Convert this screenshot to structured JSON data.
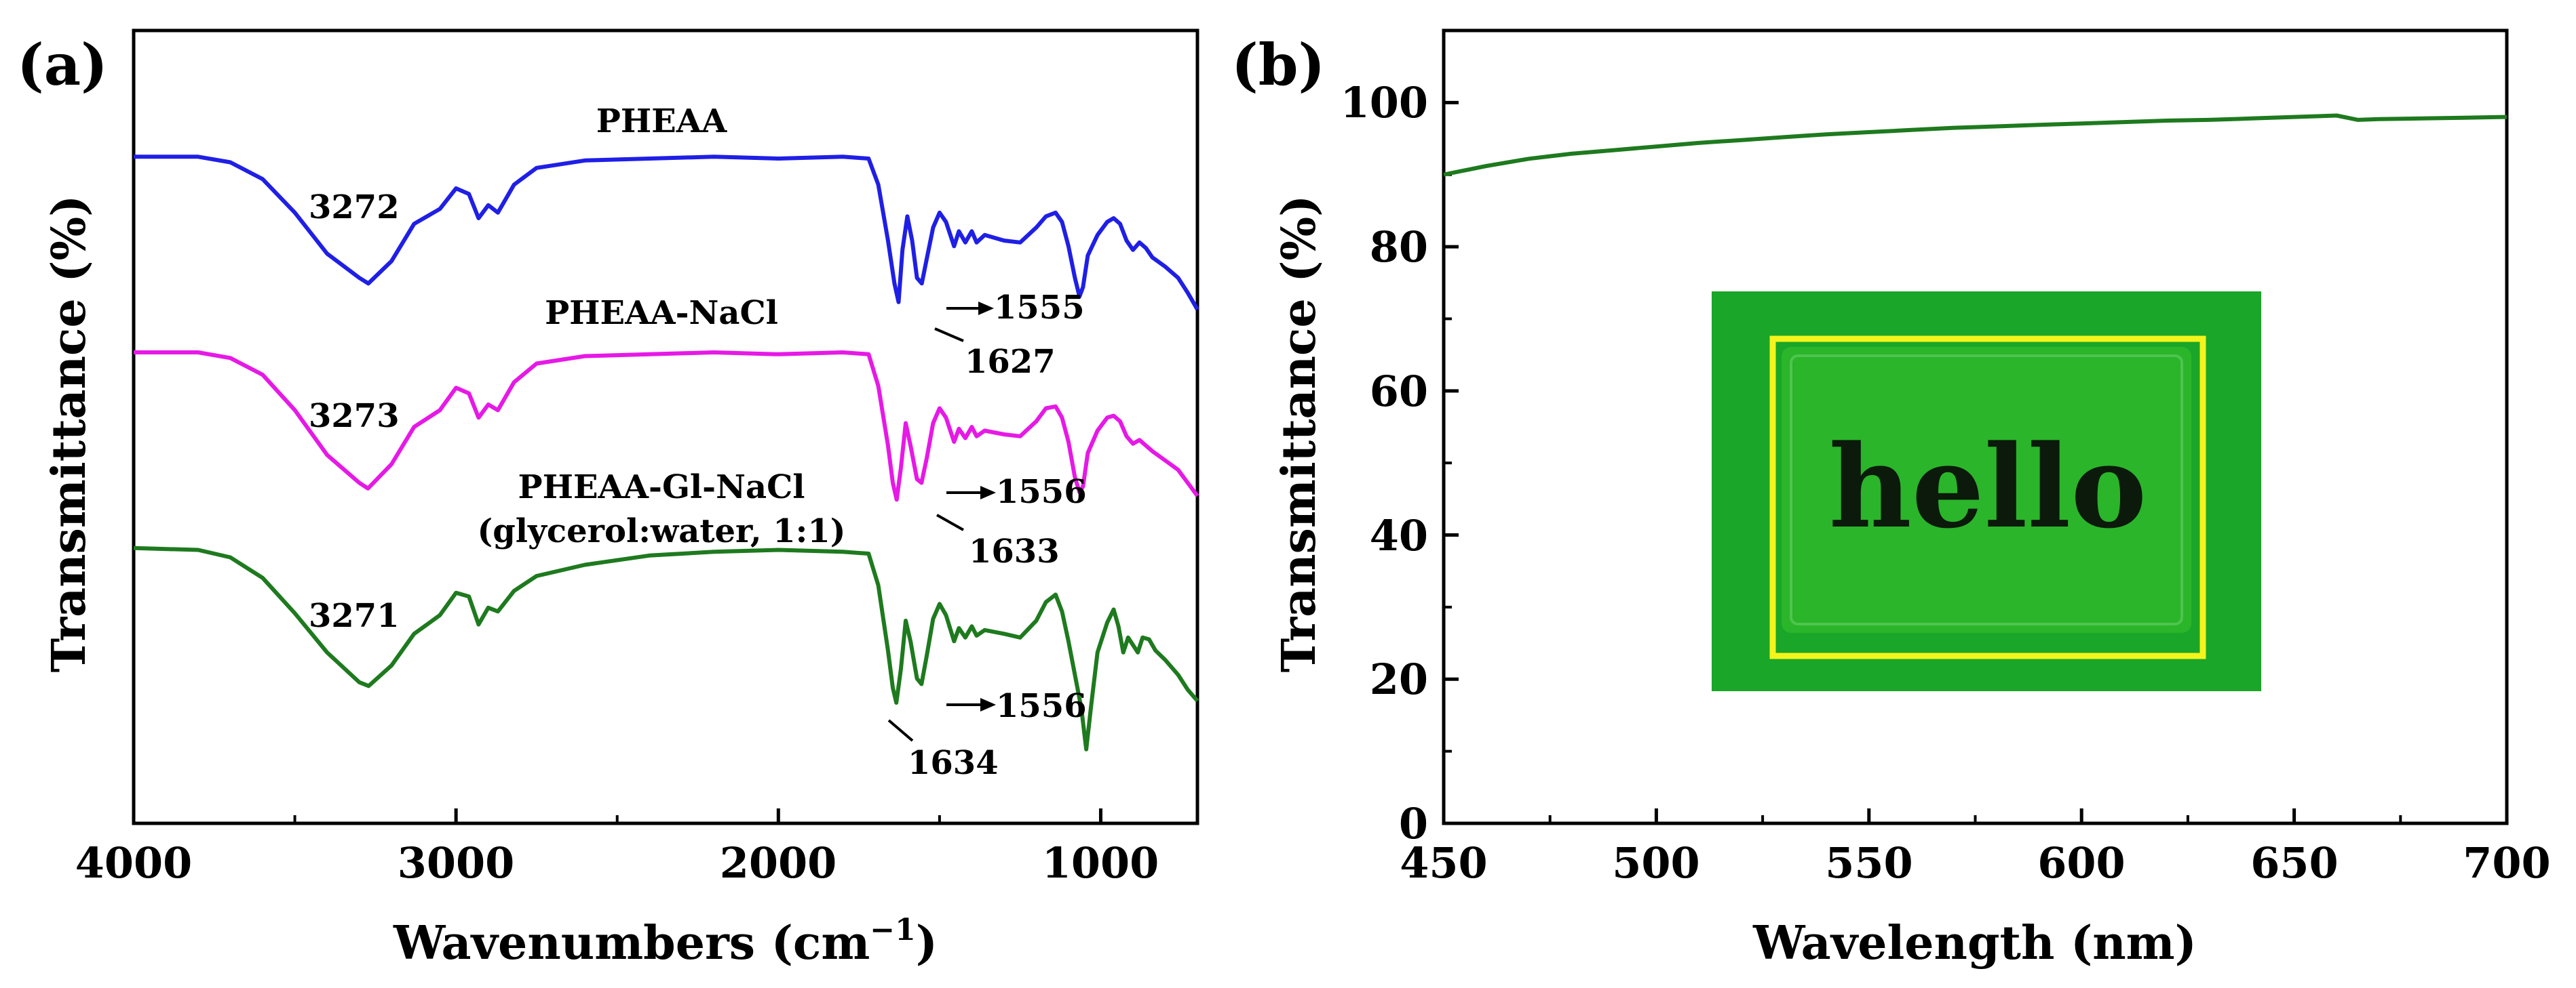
{
  "chart_data": [
    {
      "panel": "(a)",
      "type": "line",
      "xlabel": "Wavenumbers (cm",
      "xlabel_sup": "−1",
      "xlabel_end": ")",
      "ylabel": "Transmittance (%)",
      "xlim": [
        4000,
        700
      ],
      "x_ticks": [
        "4000",
        "3000",
        "2000",
        "1000"
      ],
      "x_tick_values": [
        4000,
        3000,
        2000,
        1000
      ],
      "y_ticks_shown": false,
      "series": [
        {
          "name": "PHEAA",
          "color": "#1f1fe6",
          "baseline": 10.5,
          "points": [
            [
              4000,
              0
            ],
            [
              3800,
              0
            ],
            [
              3700,
              0.3
            ],
            [
              3600,
              1.2
            ],
            [
              3500,
              3.0
            ],
            [
              3400,
              5.2
            ],
            [
              3300,
              6.5
            ],
            [
              3272,
              6.8
            ],
            [
              3200,
              5.6
            ],
            [
              3130,
              3.6
            ],
            [
              3050,
              2.8
            ],
            [
              3000,
              1.7
            ],
            [
              2960,
              2.0
            ],
            [
              2930,
              3.3
            ],
            [
              2900,
              2.6
            ],
            [
              2870,
              3.0
            ],
            [
              2820,
              1.5
            ],
            [
              2750,
              0.6
            ],
            [
              2600,
              0.2
            ],
            [
              2400,
              0.1
            ],
            [
              2200,
              0.0
            ],
            [
              2000,
              0.1
            ],
            [
              1800,
              0.0
            ],
            [
              1720,
              0.1
            ],
            [
              1690,
              1.5
            ],
            [
              1660,
              4.5
            ],
            [
              1640,
              6.8
            ],
            [
              1627,
              7.8
            ],
            [
              1615,
              5.0
            ],
            [
              1600,
              3.2
            ],
            [
              1585,
              4.5
            ],
            [
              1570,
              6.5
            ],
            [
              1555,
              6.8
            ],
            [
              1540,
              5.5
            ],
            [
              1520,
              3.8
            ],
            [
              1500,
              3.0
            ],
            [
              1480,
              3.5
            ],
            [
              1455,
              4.8
            ],
            [
              1440,
              4.0
            ],
            [
              1420,
              4.6
            ],
            [
              1400,
              4.0
            ],
            [
              1385,
              4.6
            ],
            [
              1360,
              4.2
            ],
            [
              1300,
              4.5
            ],
            [
              1250,
              4.6
            ],
            [
              1200,
              3.8
            ],
            [
              1170,
              3.2
            ],
            [
              1140,
              3.0
            ],
            [
              1120,
              3.5
            ],
            [
              1100,
              4.8
            ],
            [
              1080,
              6.5
            ],
            [
              1066,
              7.5
            ],
            [
              1055,
              7.0
            ],
            [
              1040,
              5.3
            ],
            [
              1010,
              4.2
            ],
            [
              980,
              3.5
            ],
            [
              960,
              3.3
            ],
            [
              940,
              3.6
            ],
            [
              920,
              4.5
            ],
            [
              900,
              5.0
            ],
            [
              880,
              4.6
            ],
            [
              860,
              4.9
            ],
            [
              840,
              5.4
            ],
            [
              800,
              5.9
            ],
            [
              760,
              6.5
            ],
            [
              730,
              7.3
            ],
            [
              700,
              8.2
            ]
          ]
        },
        {
          "name": "PHEAA-NaCl",
          "color": "#e619e6",
          "baseline": 0,
          "points": [
            [
              4000,
              0
            ],
            [
              3800,
              0
            ],
            [
              3700,
              0.3
            ],
            [
              3600,
              1.2
            ],
            [
              3500,
              3.1
            ],
            [
              3400,
              5.5
            ],
            [
              3300,
              7.0
            ],
            [
              3273,
              7.3
            ],
            [
              3200,
              6.0
            ],
            [
              3130,
              4.0
            ],
            [
              3050,
              3.1
            ],
            [
              3000,
              1.9
            ],
            [
              2960,
              2.2
            ],
            [
              2930,
              3.5
            ],
            [
              2900,
              2.8
            ],
            [
              2870,
              3.1
            ],
            [
              2820,
              1.6
            ],
            [
              2750,
              0.6
            ],
            [
              2600,
              0.2
            ],
            [
              2400,
              0.1
            ],
            [
              2200,
              0.0
            ],
            [
              2000,
              0.1
            ],
            [
              1800,
              0.0
            ],
            [
              1720,
              0.1
            ],
            [
              1690,
              1.8
            ],
            [
              1660,
              5.0
            ],
            [
              1645,
              7.0
            ],
            [
              1633,
              7.9
            ],
            [
              1620,
              6.2
            ],
            [
              1605,
              3.8
            ],
            [
              1590,
              5.0
            ],
            [
              1570,
              6.8
            ],
            [
              1556,
              7.0
            ],
            [
              1540,
              5.7
            ],
            [
              1520,
              3.8
            ],
            [
              1500,
              3.0
            ],
            [
              1480,
              3.5
            ],
            [
              1455,
              4.8
            ],
            [
              1440,
              4.1
            ],
            [
              1420,
              4.6
            ],
            [
              1400,
              4.0
            ],
            [
              1385,
              4.5
            ],
            [
              1360,
              4.2
            ],
            [
              1300,
              4.4
            ],
            [
              1250,
              4.5
            ],
            [
              1200,
              3.7
            ],
            [
              1170,
              3.0
            ],
            [
              1140,
              2.9
            ],
            [
              1120,
              3.5
            ],
            [
              1100,
              4.8
            ],
            [
              1080,
              6.7
            ],
            [
              1066,
              7.5
            ],
            [
              1055,
              7.2
            ],
            [
              1040,
              5.4
            ],
            [
              1010,
              4.2
            ],
            [
              980,
              3.5
            ],
            [
              960,
              3.4
            ],
            [
              940,
              3.7
            ],
            [
              920,
              4.5
            ],
            [
              900,
              4.9
            ],
            [
              880,
              4.7
            ],
            [
              860,
              5.0
            ],
            [
              840,
              5.3
            ],
            [
              800,
              5.8
            ],
            [
              760,
              6.3
            ],
            [
              730,
              7.0
            ],
            [
              700,
              7.7
            ]
          ]
        },
        {
          "name": "PHEAA-Gl-NaCl",
          "name_line2": "(glycerol:water, 1:1)",
          "color": "#1e7a1e",
          "baseline": -10.5,
          "points": [
            [
              4000,
              0
            ],
            [
              3800,
              0.1
            ],
            [
              3700,
              0.5
            ],
            [
              3600,
              1.6
            ],
            [
              3500,
              3.5
            ],
            [
              3400,
              5.6
            ],
            [
              3300,
              7.2
            ],
            [
              3271,
              7.4
            ],
            [
              3200,
              6.3
            ],
            [
              3130,
              4.6
            ],
            [
              3050,
              3.6
            ],
            [
              3000,
              2.4
            ],
            [
              2960,
              2.6
            ],
            [
              2930,
              4.1
            ],
            [
              2900,
              3.2
            ],
            [
              2870,
              3.4
            ],
            [
              2820,
              2.3
            ],
            [
              2750,
              1.5
            ],
            [
              2600,
              0.9
            ],
            [
              2400,
              0.4
            ],
            [
              2200,
              0.2
            ],
            [
              2000,
              0.1
            ],
            [
              1800,
              0.2
            ],
            [
              1720,
              0.3
            ],
            [
              1690,
              2.0
            ],
            [
              1660,
              5.5
            ],
            [
              1645,
              7.5
            ],
            [
              1634,
              8.3
            ],
            [
              1620,
              6.5
            ],
            [
              1605,
              3.9
            ],
            [
              1590,
              5.0
            ],
            [
              1570,
              7.0
            ],
            [
              1556,
              7.3
            ],
            [
              1540,
              5.8
            ],
            [
              1520,
              3.8
            ],
            [
              1500,
              3.0
            ],
            [
              1480,
              3.6
            ],
            [
              1455,
              5.0
            ],
            [
              1440,
              4.3
            ],
            [
              1420,
              4.8
            ],
            [
              1400,
              4.2
            ],
            [
              1385,
              4.7
            ],
            [
              1360,
              4.4
            ],
            [
              1300,
              4.6
            ],
            [
              1250,
              4.8
            ],
            [
              1200,
              3.9
            ],
            [
              1170,
              2.9
            ],
            [
              1140,
              2.5
            ],
            [
              1120,
              3.4
            ],
            [
              1100,
              5.0
            ],
            [
              1080,
              6.8
            ],
            [
              1060,
              8.6
            ],
            [
              1045,
              10.8
            ],
            [
              1030,
              8.5
            ],
            [
              1010,
              5.6
            ],
            [
              980,
              4.0
            ],
            [
              960,
              3.3
            ],
            [
              945,
              4.2
            ],
            [
              930,
              5.6
            ],
            [
              915,
              4.8
            ],
            [
              900,
              5.2
            ],
            [
              885,
              5.6
            ],
            [
              870,
              4.8
            ],
            [
              850,
              4.9
            ],
            [
              830,
              5.5
            ],
            [
              800,
              6.0
            ],
            [
              760,
              6.8
            ],
            [
              730,
              7.6
            ],
            [
              700,
              8.2
            ]
          ]
        }
      ],
      "annotations": [
        {
          "text": "3272",
          "series": 0
        },
        {
          "text": "1555",
          "series": 0
        },
        {
          "text": "1627",
          "series": 0
        },
        {
          "text": "3273",
          "series": 1
        },
        {
          "text": "1556",
          "series": 1
        },
        {
          "text": "1633",
          "series": 1
        },
        {
          "text": "3271",
          "series": 2
        },
        {
          "text": "1556",
          "series": 2
        },
        {
          "text": "1634",
          "series": 2
        }
      ]
    },
    {
      "panel": "(b)",
      "type": "line",
      "xlabel": "Wavelength (nm)",
      "ylabel": "Transmittance (%)",
      "xlim": [
        450,
        700
      ],
      "ylim": [
        0,
        110
      ],
      "x_ticks": [
        "450",
        "500",
        "550",
        "600",
        "650",
        "700"
      ],
      "y_ticks": [
        "0",
        "20",
        "40",
        "60",
        "80",
        "100"
      ],
      "series": [
        {
          "name": "Transmittance",
          "color": "#1e7a1e",
          "x": [
            450,
            460,
            470,
            480,
            490,
            500,
            510,
            520,
            530,
            540,
            550,
            560,
            570,
            580,
            590,
            600,
            610,
            620,
            630,
            640,
            650,
            660,
            665,
            670,
            680,
            690,
            700
          ],
          "y": [
            90.0,
            91.2,
            92.2,
            92.9,
            93.4,
            93.9,
            94.4,
            94.8,
            95.2,
            95.6,
            95.9,
            96.2,
            96.5,
            96.7,
            96.9,
            97.1,
            97.3,
            97.5,
            97.6,
            97.8,
            98.0,
            98.2,
            97.6,
            97.7,
            97.8,
            97.9,
            98.0
          ]
        }
      ],
      "inset": {
        "text": "hello",
        "colors": {
          "background": "#1aa628",
          "sample": "#2bb52a",
          "frame": "#f4f41c"
        }
      }
    }
  ]
}
